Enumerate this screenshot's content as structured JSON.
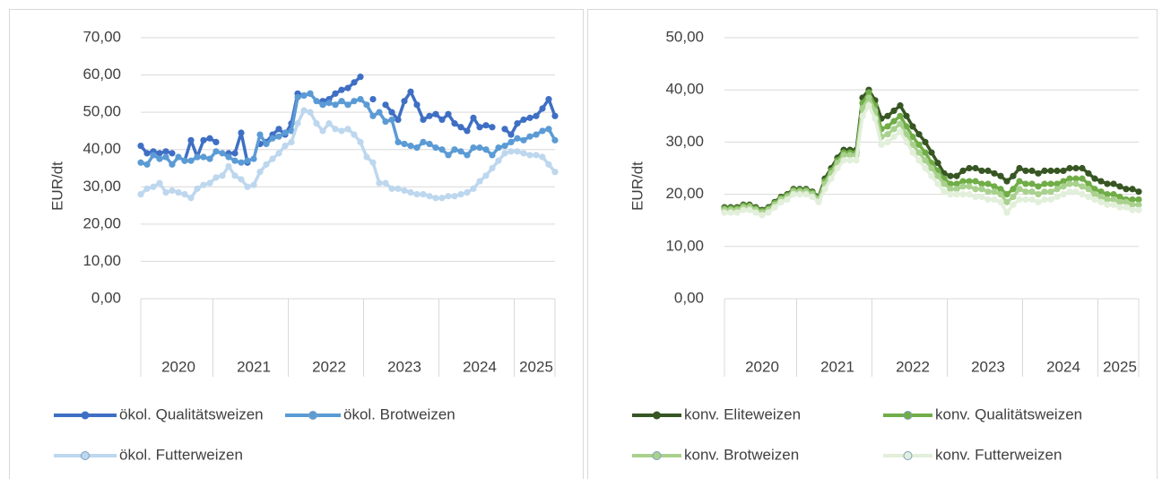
{
  "chart_data": [
    {
      "type": "line",
      "ylabel": "EUR/dt",
      "categories": [
        null,
        null,
        null,
        null,
        null,
        null,
        "2020",
        null,
        null,
        null,
        null,
        null,
        null,
        null,
        null,
        null,
        null,
        null,
        "2021",
        null,
        null,
        null,
        null,
        null,
        null,
        null,
        null,
        null,
        null,
        null,
        "2022",
        null,
        null,
        null,
        null,
        null,
        null,
        null,
        null,
        null,
        null,
        null,
        "2023",
        null,
        null,
        null,
        null,
        null,
        null,
        null,
        null,
        null,
        null,
        null,
        "2024",
        null,
        null,
        null,
        null,
        null,
        null,
        null,
        null,
        "2025",
        null,
        null,
        null
      ],
      "ylim": [
        0,
        70
      ],
      "yticks": [
        {
          "value": 0,
          "label": "0,00"
        },
        {
          "value": 10,
          "label": "10,00"
        },
        {
          "value": 20,
          "label": "20,00"
        },
        {
          "value": 30,
          "label": "30,00"
        },
        {
          "value": 40,
          "label": "40,00"
        },
        {
          "value": 50,
          "label": "50,00"
        },
        {
          "value": 60,
          "label": "60,00"
        },
        {
          "value": 70,
          "label": "70,00"
        }
      ],
      "grid": true,
      "series": [
        {
          "name": "ökol. Qualitätsweizen",
          "color": "#3f6fc4",
          "values": [
            41,
            39,
            39.5,
            39,
            39.5,
            39,
            null,
            37,
            42.5,
            38,
            42.5,
            43,
            42,
            null,
            39,
            39,
            44.5,
            36.5,
            null,
            41.5,
            42,
            44,
            45.5,
            44,
            47,
            55,
            54.5,
            55,
            null,
            53,
            53.5,
            55,
            56,
            56.5,
            58,
            59.5,
            null,
            53.5,
            null,
            52,
            50,
            48,
            53,
            55.5,
            52,
            48,
            49,
            49.5,
            48,
            49.5,
            47,
            46,
            45,
            48.5,
            46,
            46.5,
            46,
            null,
            45.5,
            44,
            47,
            48,
            48.5,
            49,
            51,
            53.5,
            49
          ]
        },
        {
          "name": "ökol. Brotweizen",
          "color": "#5b9bd5",
          "values": [
            36.5,
            36,
            38.5,
            37.5,
            38,
            36,
            38,
            37,
            37,
            38,
            38,
            37.5,
            39.5,
            39,
            38,
            37,
            36.5,
            37,
            37.5,
            44,
            41.5,
            43,
            43.5,
            44.5,
            45,
            54,
            54.5,
            55,
            53,
            52,
            52.5,
            52,
            53,
            52,
            53,
            53.5,
            52,
            49,
            50,
            47.5,
            48,
            42,
            41.5,
            41,
            40.5,
            42,
            41.5,
            40.5,
            40,
            38.5,
            40,
            39.5,
            38.5,
            40.5,
            40.5,
            40,
            38.5,
            40.5,
            41,
            42,
            43,
            42.5,
            43.5,
            44,
            45,
            45.5,
            42.5
          ]
        },
        {
          "name": "ökol. Futterweizen",
          "color": "#bdd7ee",
          "values": [
            28,
            29.5,
            30,
            31,
            28.5,
            29,
            28.5,
            28,
            27,
            29.5,
            30.5,
            31,
            32.5,
            33,
            35.5,
            33,
            32,
            30,
            30.5,
            34,
            36,
            37.5,
            39,
            41,
            42,
            47,
            50.5,
            50,
            47,
            45,
            47,
            45.5,
            45,
            45.5,
            44,
            42,
            38,
            36.5,
            31,
            31,
            29.5,
            29.5,
            29,
            28.5,
            28,
            28,
            27.5,
            27,
            27,
            27.5,
            27.5,
            28,
            28.5,
            29.5,
            31.5,
            33,
            35,
            37,
            39,
            39.5,
            39.5,
            39,
            38.5,
            38.5,
            38,
            36,
            34
          ]
        }
      ]
    },
    {
      "type": "line",
      "ylabel": "EUR/dt",
      "categories": [
        null,
        null,
        null,
        null,
        null,
        null,
        "2020",
        null,
        null,
        null,
        null,
        null,
        null,
        null,
        null,
        null,
        null,
        null,
        "2021",
        null,
        null,
        null,
        null,
        null,
        null,
        null,
        null,
        null,
        null,
        null,
        "2022",
        null,
        null,
        null,
        null,
        null,
        null,
        null,
        null,
        null,
        null,
        null,
        "2023",
        null,
        null,
        null,
        null,
        null,
        null,
        null,
        null,
        null,
        null,
        null,
        "2024",
        null,
        null,
        null,
        null,
        null,
        null,
        null,
        null,
        "2025",
        null,
        null,
        null
      ],
      "ylim": [
        0,
        50
      ],
      "yticks": [
        {
          "value": 0,
          "label": "0,00"
        },
        {
          "value": 10,
          "label": "10,00"
        },
        {
          "value": 20,
          "label": "20,00"
        },
        {
          "value": 30,
          "label": "30,00"
        },
        {
          "value": 40,
          "label": "40,00"
        },
        {
          "value": 50,
          "label": "50,00"
        }
      ],
      "grid": true,
      "series": [
        {
          "name": "konv. Eliteweizen",
          "color": "#375623",
          "values": [
            17.5,
            17.5,
            17.5,
            18,
            18,
            17.5,
            17,
            17.5,
            18.5,
            19.5,
            20,
            21,
            21,
            21,
            20.5,
            19.5,
            23,
            25,
            27,
            28.5,
            28.5,
            28.5,
            38.5,
            40,
            38,
            34.5,
            35,
            36,
            37,
            35,
            33,
            31.5,
            30,
            28,
            26,
            24,
            23.5,
            23.5,
            24.5,
            25,
            25,
            24.5,
            24.5,
            24,
            23.5,
            22.5,
            23.5,
            25,
            24.5,
            24.5,
            24,
            24.5,
            24.5,
            24.5,
            24.5,
            25,
            25,
            25,
            24,
            23,
            22.5,
            22,
            22,
            21.5,
            21,
            21,
            20.5
          ]
        },
        {
          "name": "konv. Qualitätsweizen",
          "color": "#70ad47",
          "values": [
            17.3,
            17.3,
            17.3,
            17.8,
            17.8,
            17.3,
            16.8,
            17.3,
            18.3,
            19.3,
            19.8,
            20.8,
            20.8,
            20.8,
            20.3,
            19.3,
            22.5,
            24.5,
            26.5,
            28,
            28,
            28,
            37.5,
            39.5,
            37,
            32.5,
            33,
            34,
            35,
            33,
            31,
            29.5,
            28,
            26,
            24.5,
            23,
            22,
            22,
            22.5,
            22.5,
            22.5,
            22,
            22,
            21.5,
            21,
            20,
            21,
            22.5,
            22,
            22,
            21.5,
            22,
            22,
            22,
            22.5,
            23,
            23,
            23,
            22,
            21,
            20.5,
            20,
            20,
            19.5,
            19,
            19,
            19
          ]
        },
        {
          "name": "konv. Brotweizen",
          "color": "#a9d18e",
          "values": [
            17,
            17,
            17,
            17.5,
            17.5,
            17,
            16.5,
            17,
            18,
            19,
            19.5,
            20.5,
            20.5,
            20.5,
            20,
            19,
            22,
            24,
            26,
            27.5,
            27.5,
            27.5,
            36.5,
            38.5,
            36,
            31,
            31.5,
            32.5,
            33.5,
            31.5,
            29.5,
            28,
            26.5,
            25,
            23.5,
            22,
            21,
            21,
            21.5,
            21.5,
            21,
            21,
            20.5,
            20.5,
            20,
            18.5,
            19.5,
            21,
            20.5,
            20.5,
            20,
            20.5,
            20.5,
            21,
            21.5,
            22,
            22,
            21.5,
            21,
            20,
            19.5,
            19,
            19,
            18.5,
            18.5,
            18,
            18
          ]
        },
        {
          "name": "konv. Futterweizen",
          "color": "#e2efda",
          "values": [
            16.5,
            16.5,
            16.5,
            17,
            17,
            16.5,
            16,
            16.5,
            17.5,
            18.5,
            19,
            20,
            20,
            20,
            19.5,
            18.5,
            21,
            23,
            25,
            26.5,
            26.5,
            26.5,
            35,
            37,
            34.5,
            29.5,
            30,
            31,
            32,
            30,
            28,
            26.5,
            25,
            23.5,
            22,
            20.5,
            20,
            20,
            20,
            20,
            19.5,
            19.5,
            19,
            19,
            18.5,
            16.5,
            18,
            19,
            19,
            19,
            18.5,
            19,
            19,
            19.5,
            20,
            20.5,
            20.5,
            20,
            19.5,
            19,
            18.5,
            18,
            18,
            17.5,
            17.5,
            17,
            17
          ]
        }
      ]
    }
  ]
}
